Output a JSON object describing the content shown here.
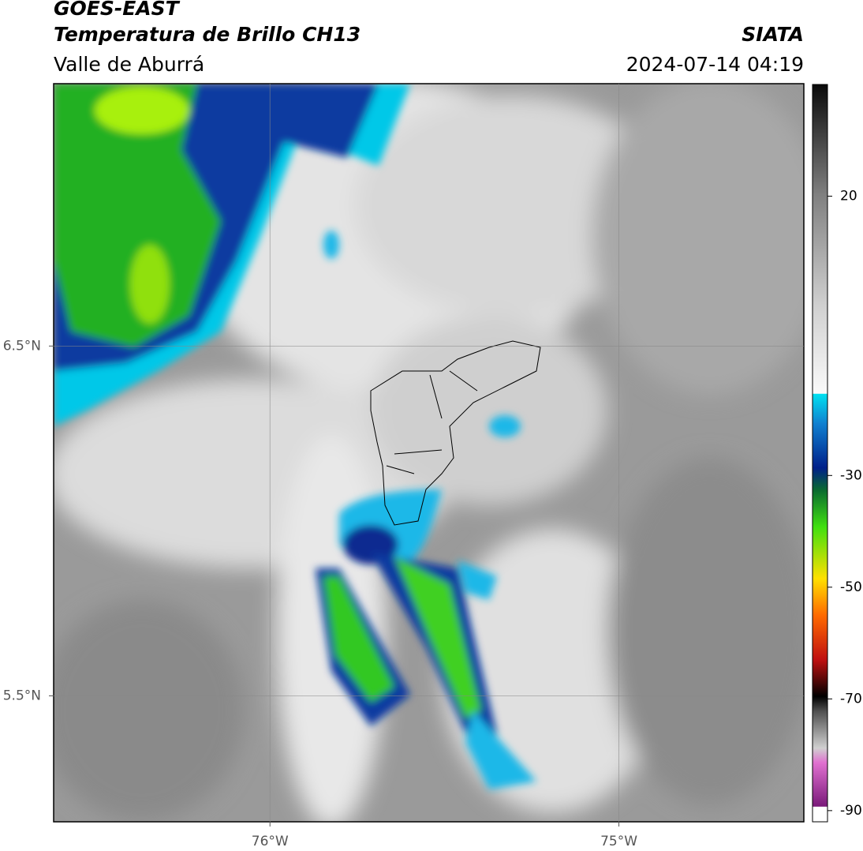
{
  "header": {
    "title": "GOES-EAST",
    "subtitle": "Temperatura de Brillo CH13",
    "region": "Valle de Aburrá",
    "source": "SIATA",
    "datetime": "2024-07-14 04:19"
  },
  "map": {
    "xlim": [
      -76.62,
      -74.47
    ],
    "ylim": [
      5.14,
      7.25
    ],
    "xticks": [
      {
        "value": -76,
        "label": "76°W"
      },
      {
        "value": -75,
        "label": "75°W"
      }
    ],
    "yticks": [
      {
        "value": 5.5,
        "label": "5.5°N"
      },
      {
        "value": 6.5,
        "label": "6.5°N"
      }
    ]
  },
  "colorbar": {
    "lim": [
      -92,
      40
    ],
    "ticks": [
      20,
      -30,
      -50,
      -70,
      -90
    ]
  }
}
